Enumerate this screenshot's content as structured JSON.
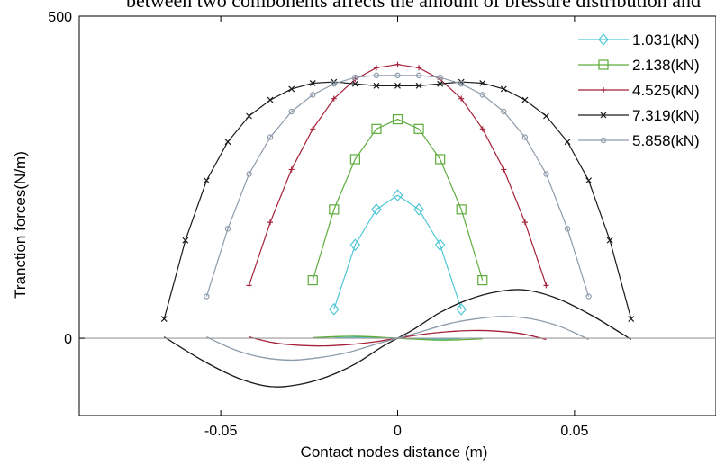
{
  "caption": "between two components affects the amount of pressure distribution and showing",
  "chart_data": {
    "type": "line",
    "title": "",
    "xlabel": "Contact nodes distance (m)",
    "ylabel": "Tranction forces(N/m)",
    "xlim": [
      -0.09,
      0.09
    ],
    "ylim": [
      -120,
      500
    ],
    "xticks": [
      -0.05,
      0,
      0.05
    ],
    "xtick_labels": [
      "-0.05",
      "0",
      "0.05"
    ],
    "yticks": [
      0,
      500
    ],
    "ytick_labels": [
      "0",
      "500"
    ],
    "legend_position": "top-right",
    "series": [
      {
        "name": "1.031(kN)",
        "color": "#4fc6d6",
        "marker": "diamond",
        "x": [
          -0.018,
          -0.012,
          -0.006,
          0,
          0.006,
          0.012,
          0.018
        ],
        "y": [
          45,
          145,
          200,
          222,
          200,
          145,
          45
        ],
        "shear_x": [
          -0.018,
          -0.009,
          0,
          0.009,
          0.018
        ],
        "shear_y": [
          0.5,
          1.5,
          0,
          -1.5,
          -0.5
        ]
      },
      {
        "name": "2.138(kN)",
        "color": "#5dac3c",
        "marker": "square",
        "x": [
          -0.024,
          -0.018,
          -0.012,
          -0.006,
          0,
          0.006,
          0.012,
          0.018,
          0.024
        ],
        "y": [
          90,
          200,
          278,
          325,
          340,
          325,
          278,
          200,
          90
        ],
        "shear_x": [
          -0.024,
          -0.012,
          0,
          0.012,
          0.024
        ],
        "shear_y": [
          1,
          3,
          0,
          -3,
          -1
        ]
      },
      {
        "name": "4.525(kN)",
        "color": "#a5203a",
        "marker": "plus",
        "x": [
          -0.042,
          -0.036,
          -0.03,
          -0.024,
          -0.018,
          -0.012,
          -0.006,
          0,
          0.006,
          0.012,
          0.018,
          0.024,
          0.03,
          0.036,
          0.042
        ],
        "y": [
          82,
          180,
          262,
          325,
          372,
          402,
          420,
          425,
          420,
          402,
          372,
          325,
          262,
          180,
          82
        ],
        "shear_x": [
          -0.042,
          -0.035,
          -0.028,
          -0.021,
          -0.014,
          -0.007,
          0,
          0.007,
          0.014,
          0.021,
          0.028,
          0.035,
          0.042
        ],
        "shear_y": [
          2,
          -7,
          -11,
          -12,
          -10,
          -6,
          0,
          6,
          10,
          12,
          11,
          7,
          -2
        ]
      },
      {
        "name": "7.319(kN)",
        "color": "#1a1a1a",
        "marker": "cross",
        "x": [
          -0.066,
          -0.06,
          -0.054,
          -0.048,
          -0.042,
          -0.036,
          -0.03,
          -0.024,
          -0.018,
          -0.012,
          -0.006,
          0,
          0.006,
          0.012,
          0.018,
          0.024,
          0.03,
          0.036,
          0.042,
          0.048,
          0.054,
          0.06,
          0.066
        ],
        "y": [
          30,
          152,
          245,
          305,
          345,
          370,
          387,
          396,
          398,
          395,
          392,
          392,
          392,
          395,
          398,
          396,
          387,
          370,
          345,
          305,
          245,
          152,
          30
        ],
        "shear_x": [
          -0.066,
          -0.055,
          -0.045,
          -0.036,
          -0.028,
          -0.02,
          -0.012,
          -0.004,
          0.004,
          0.012,
          0.02,
          0.028,
          0.036,
          0.045,
          0.055,
          0.066
        ],
        "shear_y": [
          2,
          -35,
          -62,
          -75,
          -72,
          -60,
          -40,
          -12,
          12,
          40,
          60,
          72,
          75,
          62,
          35,
          -2
        ]
      },
      {
        "name": "5.858(kN)",
        "color": "#8d9bab",
        "marker": "circle",
        "x": [
          -0.054,
          -0.048,
          -0.042,
          -0.036,
          -0.03,
          -0.024,
          -0.018,
          -0.012,
          -0.006,
          0,
          0.006,
          0.012,
          0.018,
          0.024,
          0.03,
          0.036,
          0.042,
          0.048,
          0.054
        ],
        "y": [
          65,
          170,
          255,
          312,
          352,
          378,
          395,
          405,
          408,
          408,
          408,
          405,
          395,
          378,
          352,
          312,
          255,
          170,
          65
        ],
        "shear_x": [
          -0.054,
          -0.046,
          -0.038,
          -0.03,
          -0.022,
          -0.014,
          -0.006,
          0,
          0.006,
          0.014,
          0.022,
          0.03,
          0.038,
          0.046,
          0.054
        ],
        "shear_y": [
          2,
          -18,
          -30,
          -34,
          -30,
          -22,
          -9,
          0,
          9,
          22,
          30,
          34,
          30,
          18,
          -2
        ]
      }
    ]
  }
}
